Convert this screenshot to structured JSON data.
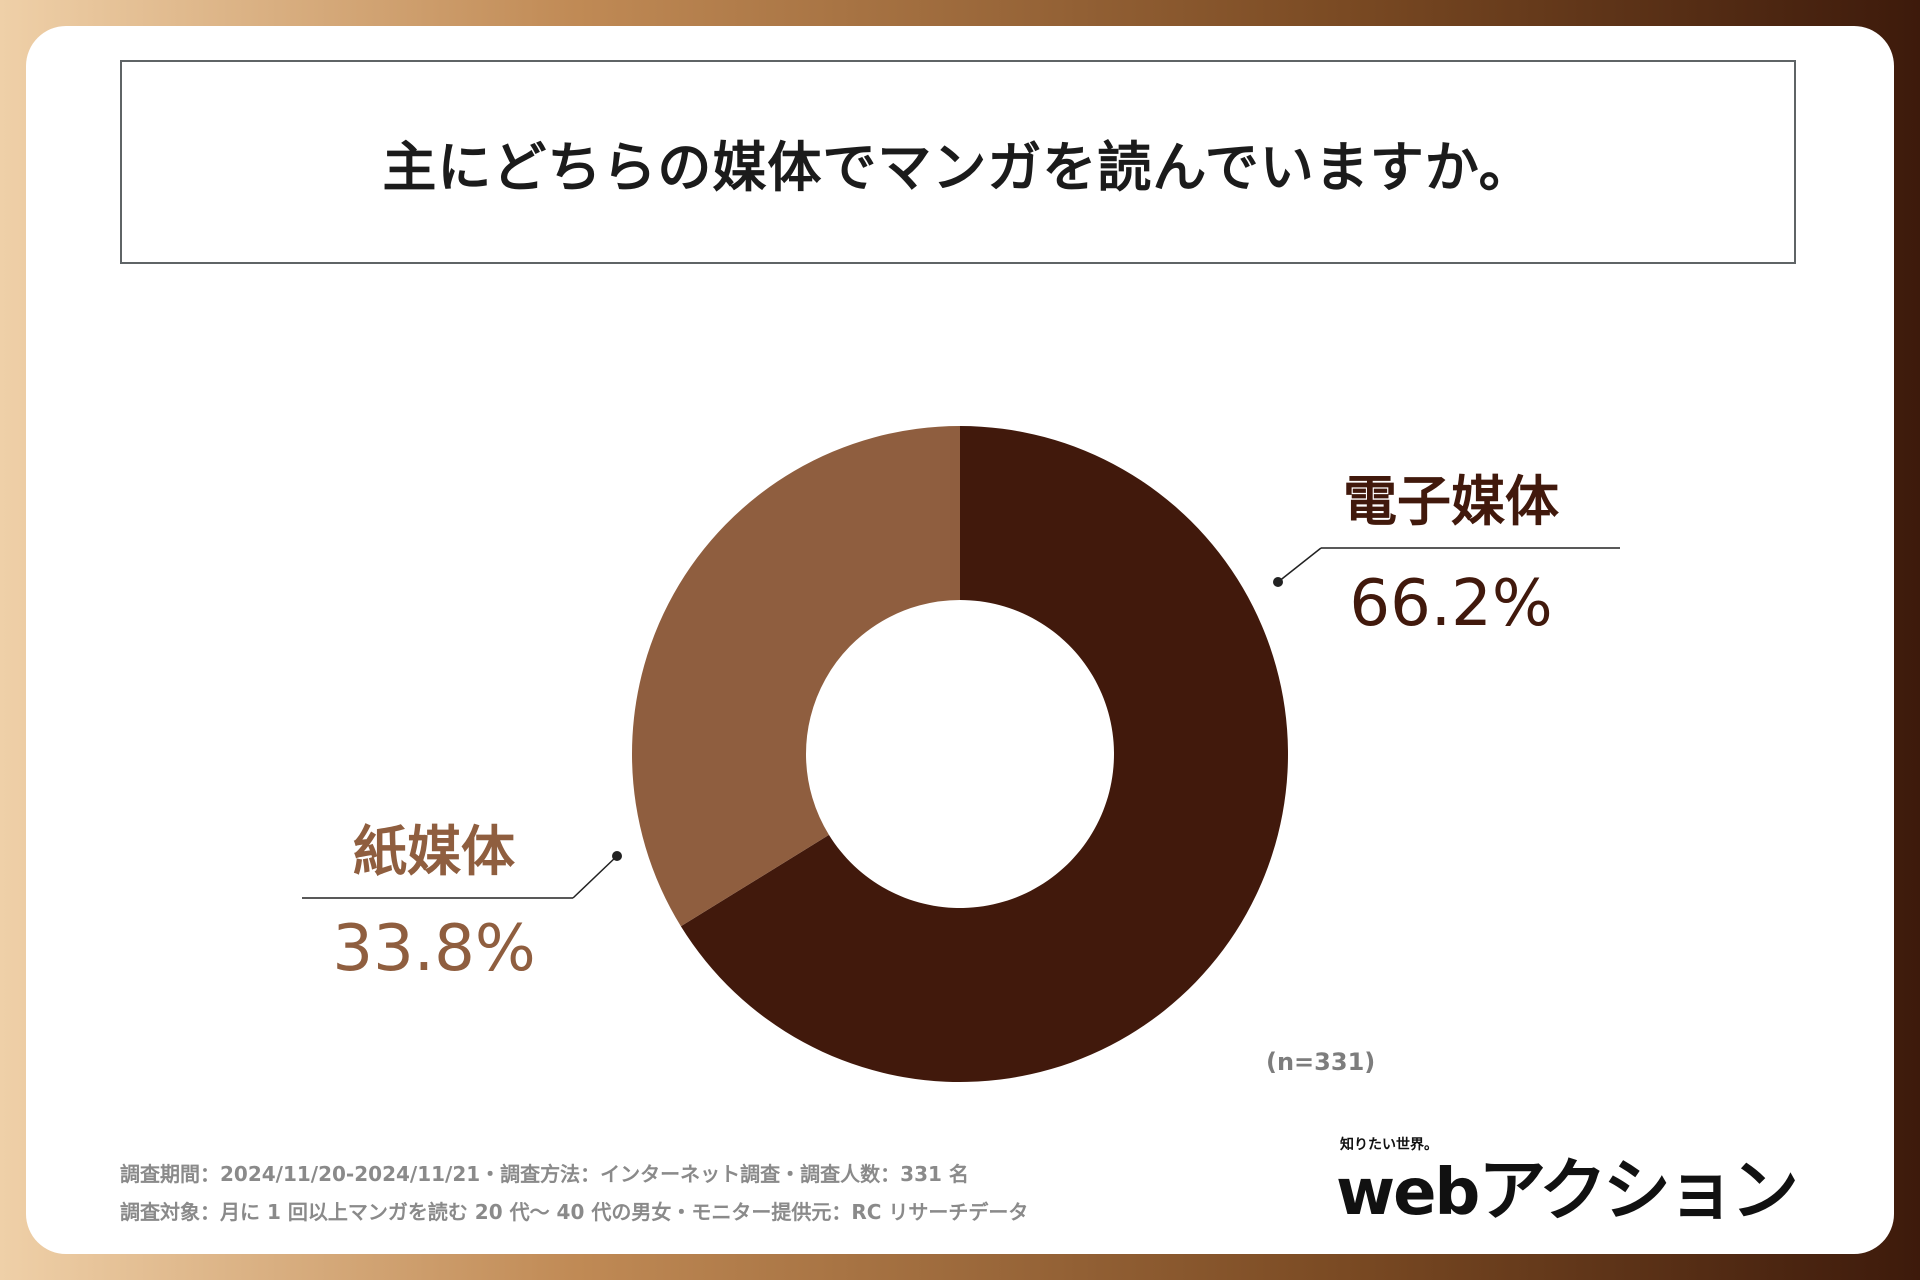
{
  "title": "主にどちらの媒体でマンガを読んでいますか。",
  "chart_data": {
    "type": "pie",
    "donut": true,
    "title": "主にどちらの媒体でマンガを読んでいますか。",
    "categories": [
      "電子媒体",
      "紙媒体"
    ],
    "values": [
      66.2,
      33.8
    ],
    "value_labels": [
      "66.2%",
      "33.8%"
    ],
    "colors": [
      "#41190c",
      "#8f5e3f"
    ],
    "sample_size": "(n=331)"
  },
  "notes": {
    "line1": "調査期間：2024/11/20-2024/11/21・調査方法：インターネット調査・調査人数：331 名",
    "line2": "調査対象：月に 1 回以上マンガを読む 20 代～ 40 代の男女・モニター提供元：RC リサーチデータ"
  },
  "logo": {
    "tagline": "知りたい世界。",
    "web": "web",
    "kana": "アクション"
  }
}
